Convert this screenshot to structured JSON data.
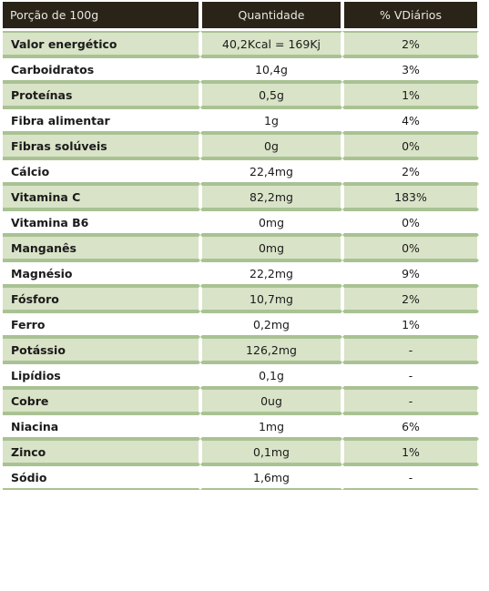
{
  "table": {
    "headers": [
      "Porção de 100g",
      "Quantidade",
      "% VDiários"
    ],
    "rows": [
      {
        "name": "Valor energético",
        "qty": "40,2Kcal = 169Kj",
        "pct": "2%"
      },
      {
        "name": "Carboidratos",
        "qty": "10,4g",
        "pct": "3%"
      },
      {
        "name": "Proteínas",
        "qty": "0,5g",
        "pct": "1%"
      },
      {
        "name": "Fibra alimentar",
        "qty": "1g",
        "pct": "4%"
      },
      {
        "name": "Fibras solúveis",
        "qty": "0g",
        "pct": "0%"
      },
      {
        "name": "Cálcio",
        "qty": "22,4mg",
        "pct": "2%"
      },
      {
        "name": "Vitamina C",
        "qty": "82,2mg",
        "pct": "183%"
      },
      {
        "name": "Vitamina B6",
        "qty": "0mg",
        "pct": "0%"
      },
      {
        "name": "Manganês",
        "qty": "0mg",
        "pct": "0%"
      },
      {
        "name": "Magnésio",
        "qty": "22,2mg",
        "pct": "9%"
      },
      {
        "name": "Fósforo",
        "qty": "10,7mg",
        "pct": "2%"
      },
      {
        "name": "Ferro",
        "qty": "0,2mg",
        "pct": "1%"
      },
      {
        "name": "Potássio",
        "qty": "126,2mg",
        "pct": "-"
      },
      {
        "name": "Lipídios",
        "qty": "0,1g",
        "pct": "-"
      },
      {
        "name": "Cobre",
        "qty": "0ug",
        "pct": "-"
      },
      {
        "name": "Niacina",
        "qty": "1mg",
        "pct": "6%"
      },
      {
        "name": "Zinco",
        "qty": "0,1mg",
        "pct": "1%"
      },
      {
        "name": "Sódio",
        "qty": "1,6mg",
        "pct": "-"
      }
    ]
  },
  "colors": {
    "header_bg": "#2a2318",
    "header_text": "#e9e7df",
    "row_shade": "#d9e3c7",
    "row_border": "#a9c293"
  }
}
